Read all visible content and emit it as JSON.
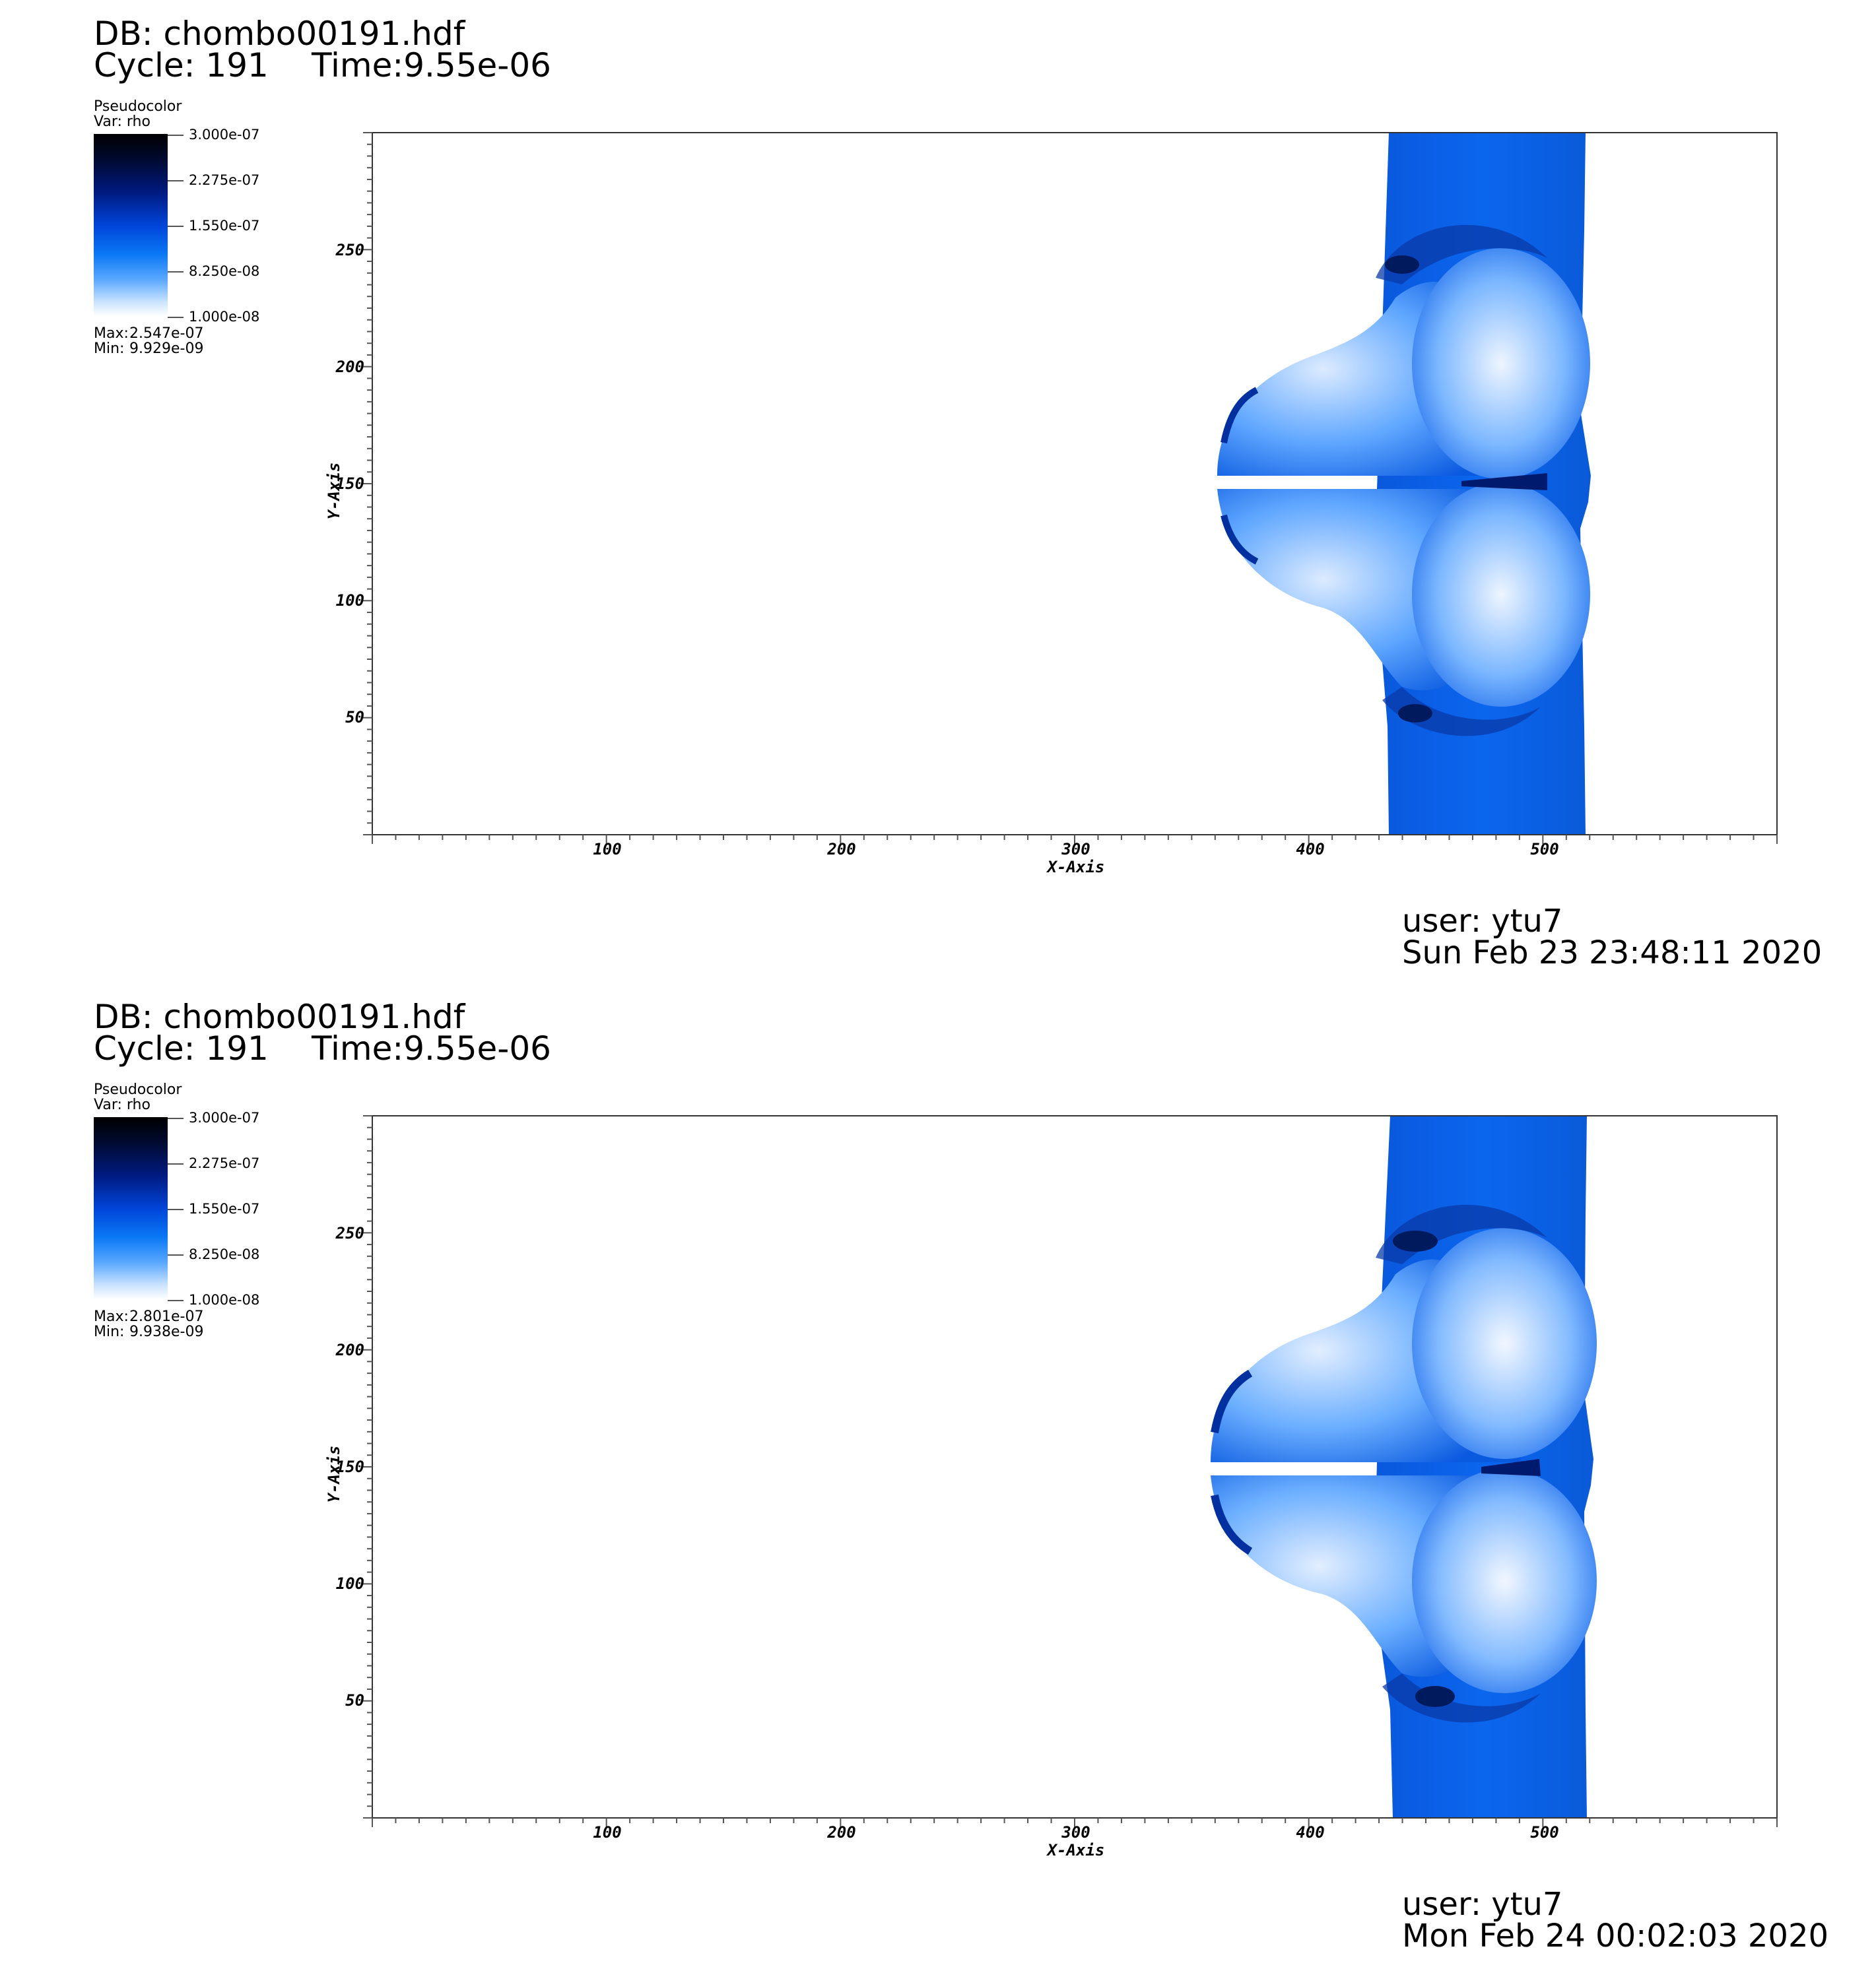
{
  "panels": [
    {
      "db": "DB: chombo00191.hdf",
      "cycle": "Cycle: 191",
      "time": "Time:9.55e-06",
      "legend": {
        "title": "Pseudocolor",
        "var": "Var: rho",
        "ticks": [
          "3.000e-07",
          "2.275e-07",
          "1.550e-07",
          "8.250e-08",
          "1.000e-08"
        ],
        "max_label": "Max:",
        "max_value": "2.547e-07",
        "min_label": "Min:",
        "min_value": "9.929e-09"
      },
      "axes": {
        "x_title": "X-Axis",
        "y_title": "Y-Axis",
        "x_ticks": [
          "100",
          "200",
          "300",
          "400",
          "500"
        ],
        "y_ticks": [
          "250",
          "200",
          "150",
          "100",
          "50"
        ]
      },
      "user": "user: ytu7",
      "date": "Sun Feb 23 23:48:11 2020"
    },
    {
      "db": "DB: chombo00191.hdf",
      "cycle": "Cycle: 191",
      "time": "Time:9.55e-06",
      "legend": {
        "title": "Pseudocolor",
        "var": "Var: rho",
        "ticks": [
          "3.000e-07",
          "2.275e-07",
          "1.550e-07",
          "8.250e-08",
          "1.000e-08"
        ],
        "max_label": "Max:",
        "max_value": "2.801e-07",
        "min_label": "Min:",
        "min_value": "9.938e-09"
      },
      "axes": {
        "x_title": "X-Axis",
        "y_title": "Y-Axis",
        "x_ticks": [
          "100",
          "200",
          "300",
          "400",
          "500"
        ],
        "y_ticks": [
          "250",
          "200",
          "150",
          "100",
          "50"
        ]
      },
      "user": "user: ytu7",
      "date": "Mon Feb 24 00:02:03 2020"
    }
  ],
  "colors": {
    "field_blue": "#0a62e6",
    "light_blue": "#cfe4ff",
    "dark_blue": "#001a6e"
  }
}
